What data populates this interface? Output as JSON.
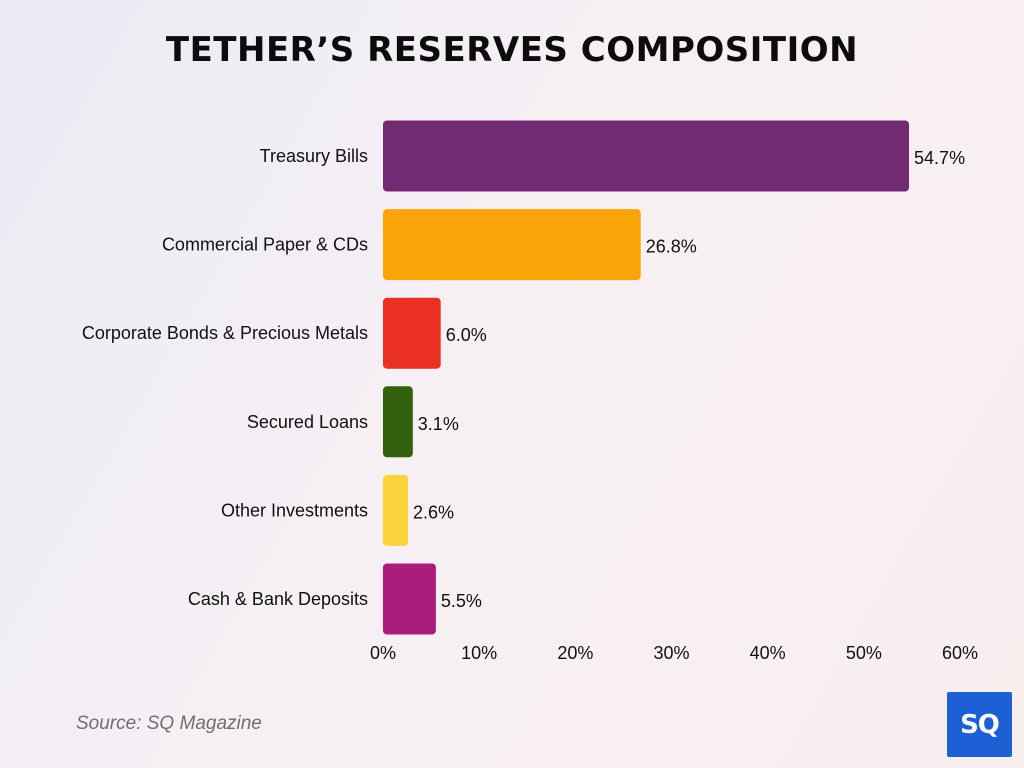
{
  "chart_data": {
    "type": "bar",
    "orientation": "horizontal",
    "title": "TETHER’S RESERVES COMPOSITION",
    "categories": [
      "Treasury Bills",
      "Commercial Paper & CDs",
      "Corporate Bonds & Precious Metals",
      "Secured Loans",
      "Other Investments",
      "Cash & Bank Deposits"
    ],
    "values": [
      54.7,
      26.8,
      6.0,
      3.1,
      2.6,
      5.5
    ],
    "value_labels": [
      "54.7%",
      "26.8%",
      "6.0%",
      "3.1%",
      "2.6%",
      "5.5%"
    ],
    "colors": [
      "#722a72",
      "#fba40a",
      "#ea2f23",
      "#33620f",
      "#fbd43c",
      "#aa1c7a"
    ],
    "xlim": [
      0,
      60
    ],
    "xticks": [
      0,
      10,
      20,
      30,
      40,
      50,
      60
    ],
    "xtick_labels": [
      "0%",
      "10%",
      "20%",
      "30%",
      "40%",
      "50%",
      "60%"
    ],
    "grid": false,
    "legend": "none"
  },
  "source": "Source: SQ Magazine",
  "logo": {
    "text": "SQ",
    "color": "#1f5fd6"
  }
}
